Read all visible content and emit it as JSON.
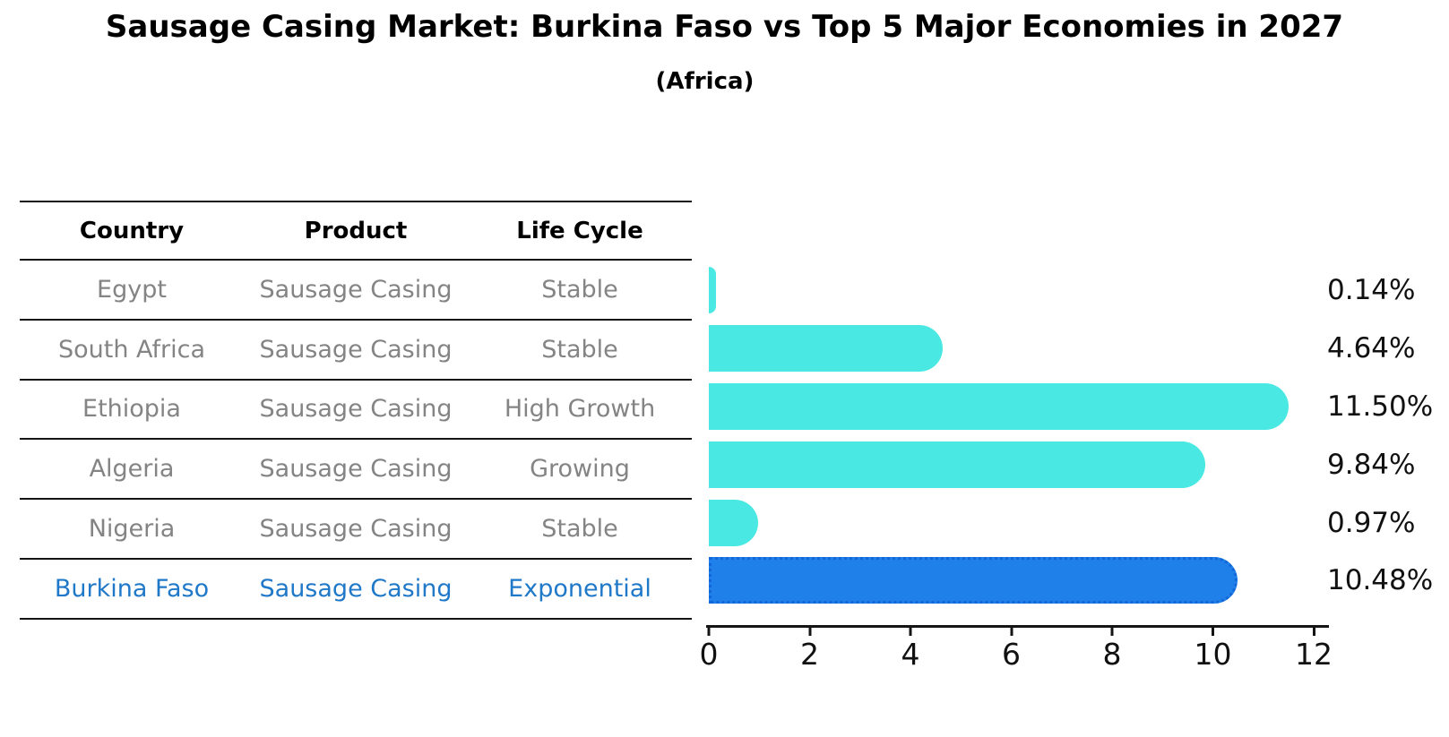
{
  "title": "Sausage Casing Market: Burkina Faso vs Top 5 Major Economies in 2027",
  "subtitle": "(Africa)",
  "table": {
    "headers": [
      "Country",
      "Product",
      "Life Cycle"
    ],
    "rows": [
      {
        "country": "Egypt",
        "product": "Sausage Casing",
        "life_cycle": "Stable",
        "highlight": false
      },
      {
        "country": "South Africa",
        "product": "Sausage Casing",
        "life_cycle": "Stable",
        "highlight": false
      },
      {
        "country": "Ethiopia",
        "product": "Sausage Casing",
        "life_cycle": "High Growth",
        "highlight": false
      },
      {
        "country": "Algeria",
        "product": "Sausage Casing",
        "life_cycle": "Growing",
        "highlight": false
      },
      {
        "country": "Nigeria",
        "product": "Sausage Casing",
        "life_cycle": "Stable",
        "highlight": false
      },
      {
        "country": "Burkina Faso",
        "product": "Sausage Casing",
        "life_cycle": "Exponential",
        "highlight": true
      }
    ]
  },
  "chart_data": {
    "type": "bar",
    "orientation": "horizontal",
    "title": "Sausage Casing Market: Burkina Faso vs Top 5 Major Economies in 2027",
    "subtitle": "(Africa)",
    "categories": [
      "Egypt",
      "South Africa",
      "Ethiopia",
      "Algeria",
      "Nigeria",
      "Burkina Faso"
    ],
    "values": [
      0.14,
      4.64,
      11.5,
      9.84,
      0.97,
      10.48
    ],
    "labels": [
      "0.14%",
      "4.64%",
      "11.50%",
      "9.84%",
      "0.97%",
      "10.48%"
    ],
    "xlabel": "",
    "ylabel": "",
    "xlim": [
      0,
      12
    ],
    "xticks": [
      0,
      2,
      4,
      6,
      8,
      10,
      12
    ],
    "xticklabels": [
      "0",
      "2",
      "4",
      "6",
      "8",
      "10",
      "12"
    ],
    "grid": false,
    "legend": "none",
    "bar_color": "#49e8e2",
    "highlight_color": "#1e80e8",
    "highlight_index": 5
  },
  "colors": {
    "bar": "#49e8e2",
    "highlight_bar": "#1e80e8",
    "highlight_border": "#1266d9",
    "highlight_text": "#1f78c8",
    "table_text": "#848484",
    "line": "#141414"
  }
}
